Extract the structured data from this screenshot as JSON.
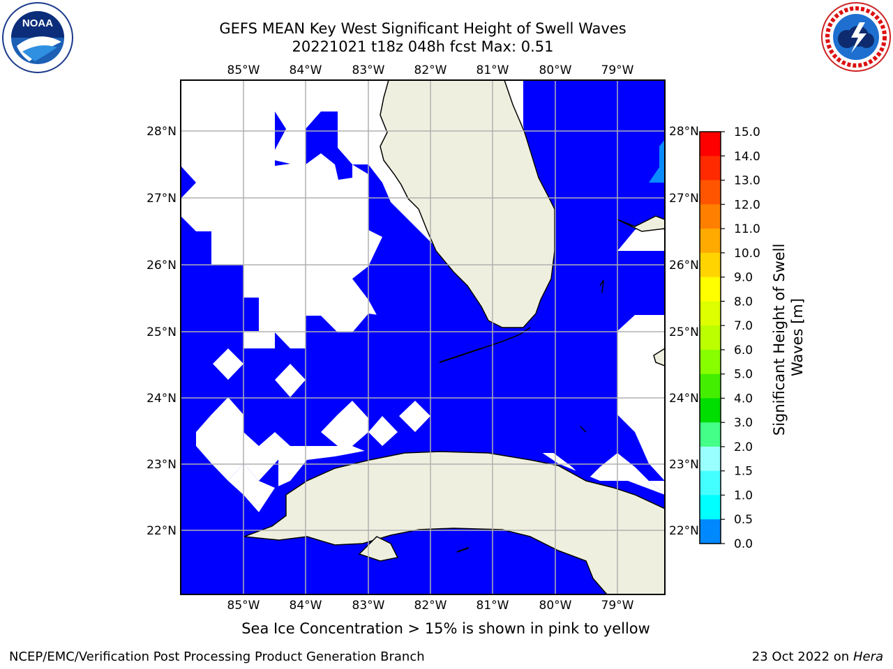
{
  "header": {
    "title_line1": "GEFS MEAN Key West Significant Height of Swell Waves",
    "title_line2": "20221021 t18z 048h fcst   Max: 0.51"
  },
  "logos": {
    "left": {
      "icon": "noaa-logo",
      "text": "NOAA"
    },
    "right": {
      "icon": "national-weather-service-logo",
      "text": "NATIONAL WEATHER SERVICE"
    }
  },
  "map": {
    "lon_ticks": [
      "85°W",
      "84°W",
      "83°W",
      "82°W",
      "81°W",
      "80°W",
      "79°W"
    ],
    "lat_ticks": [
      "28°N",
      "27°N",
      "26°N",
      "25°N",
      "24°N",
      "23°N",
      "22°N"
    ],
    "colors": {
      "ocean_low": "#0000ff",
      "land": "#efefdf",
      "grid": "#b0b0b0",
      "coast": "#000000"
    }
  },
  "colorbar": {
    "label": "Significant Height of Swell Waves [m]",
    "ticks": [
      "15.0",
      "14.0",
      "13.0",
      "12.0",
      "11.0",
      "10.0",
      "9.0",
      "8.0",
      "7.0",
      "6.0",
      "5.0",
      "4.0",
      "3.0",
      "2.0",
      "1.5",
      "1.0",
      "0.5",
      "0.0"
    ],
    "colors": [
      "#ff0000",
      "#ff2a00",
      "#ff5500",
      "#ff8000",
      "#ffaa00",
      "#ffd400",
      "#ffff00",
      "#ddff00",
      "#bbff00",
      "#88ff00",
      "#44ee00",
      "#00dd00",
      "#44ff88",
      "#99ffff",
      "#44ffff",
      "#00ffff",
      "#0088ff",
      "#0000ff"
    ]
  },
  "footer": {
    "ice_note": "Sea Ice Concentration > 15% is shown in pink to yellow",
    "branch": "NCEP/EMC/Verification Post Processing Product Generation Branch",
    "date_prefix": "23 Oct 2022 on ",
    "host": "Hera"
  }
}
